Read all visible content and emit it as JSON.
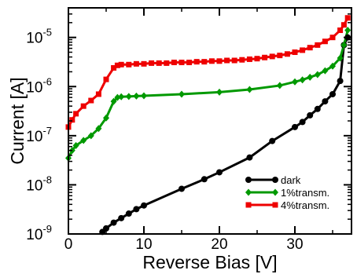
{
  "chart_data": {
    "type": "line",
    "title": "",
    "xlabel": "Reverse Bias [V]",
    "ylabel": "Current [A]",
    "xlim": [
      0,
      37.5
    ],
    "ylim": [
      1e-09,
      4e-05
    ],
    "y_scale": "log",
    "grid": false,
    "legend_position": "bottom-right",
    "x_ticks": [
      {
        "value": 0,
        "label": "0"
      },
      {
        "value": 10,
        "label": "10"
      },
      {
        "value": 20,
        "label": "20"
      },
      {
        "value": 30,
        "label": "30"
      }
    ],
    "y_ticks": [
      {
        "value": 1e-09,
        "base": "10",
        "exp": "-9"
      },
      {
        "value": 1e-08,
        "base": "10",
        "exp": "-8"
      },
      {
        "value": 1e-07,
        "base": "10",
        "exp": "-7"
      },
      {
        "value": 1e-06,
        "base": "10",
        "exp": "-6"
      },
      {
        "value": 1e-05,
        "base": "10",
        "exp": "-5"
      }
    ],
    "series": [
      {
        "name": "dark",
        "color": "#000000",
        "marker": "circle",
        "points": [
          [
            4.5,
            1.1e-09
          ],
          [
            5,
            1.3e-09
          ],
          [
            6,
            1.7e-09
          ],
          [
            7,
            2.1e-09
          ],
          [
            8,
            2.6e-09
          ],
          [
            9,
            3.2e-09
          ],
          [
            10,
            3.8e-09
          ],
          [
            15,
            8.3e-09
          ],
          [
            18,
            1.3e-08
          ],
          [
            20,
            1.8e-08
          ],
          [
            24,
            3.6e-08
          ],
          [
            27,
            7.8e-08
          ],
          [
            30,
            1.5e-07
          ],
          [
            31,
            1.9e-07
          ],
          [
            32,
            2.6e-07
          ],
          [
            33,
            3.5e-07
          ],
          [
            34,
            5e-07
          ],
          [
            35,
            7e-07
          ],
          [
            36,
            1.3e-06
          ],
          [
            36.5,
            7e-06
          ],
          [
            37,
            1e-05
          ]
        ]
      },
      {
        "name": "1%transm.",
        "color": "#009900",
        "marker": "diamond",
        "points": [
          [
            0,
            3.5e-08
          ],
          [
            0.5,
            5e-08
          ],
          [
            1,
            6.3e-08
          ],
          [
            2,
            8e-08
          ],
          [
            3,
            1e-07
          ],
          [
            4,
            1.4e-07
          ],
          [
            5,
            2.3e-07
          ],
          [
            6,
            5e-07
          ],
          [
            6.5,
            6e-07
          ],
          [
            7,
            6.2e-07
          ],
          [
            8,
            6.3e-07
          ],
          [
            9,
            6.4e-07
          ],
          [
            10,
            6.5e-07
          ],
          [
            15,
            7e-07
          ],
          [
            20,
            7.7e-07
          ],
          [
            24,
            8.7e-07
          ],
          [
            28,
            1.05e-06
          ],
          [
            30,
            1.25e-06
          ],
          [
            31,
            1.37e-06
          ],
          [
            32,
            1.55e-06
          ],
          [
            33,
            1.75e-06
          ],
          [
            34,
            2.1e-06
          ],
          [
            35,
            2.6e-06
          ],
          [
            36,
            3.8e-06
          ],
          [
            36.5,
            7e-06
          ],
          [
            37,
            1.4e-05
          ]
        ]
      },
      {
        "name": "4%transm.",
        "color": "#ee0000",
        "marker": "square",
        "points": [
          [
            0,
            1.5e-07
          ],
          [
            0.5,
            2.1e-07
          ],
          [
            1,
            2.8e-07
          ],
          [
            2,
            4e-07
          ],
          [
            3,
            5.2e-07
          ],
          [
            4,
            7e-07
          ],
          [
            5,
            1.4e-06
          ],
          [
            6,
            2.4e-06
          ],
          [
            6.5,
            2.7e-06
          ],
          [
            7,
            2.8e-06
          ],
          [
            8,
            2.8e-06
          ],
          [
            9,
            2.9e-06
          ],
          [
            10,
            2.9e-06
          ],
          [
            11,
            3e-06
          ],
          [
            12,
            3e-06
          ],
          [
            13,
            3e-06
          ],
          [
            14,
            3.1e-06
          ],
          [
            15,
            3.1e-06
          ],
          [
            16,
            3.1e-06
          ],
          [
            17,
            3.2e-06
          ],
          [
            18,
            3.2e-06
          ],
          [
            19,
            3.3e-06
          ],
          [
            20,
            3.3e-06
          ],
          [
            21,
            3.4e-06
          ],
          [
            22,
            3.4e-06
          ],
          [
            23,
            3.5e-06
          ],
          [
            24,
            3.6e-06
          ],
          [
            25,
            3.7e-06
          ],
          [
            26,
            3.9e-06
          ],
          [
            27,
            4.1e-06
          ],
          [
            28,
            4.3e-06
          ],
          [
            29,
            4.6e-06
          ],
          [
            30,
            5e-06
          ],
          [
            31,
            5.5e-06
          ],
          [
            32,
            6.2e-06
          ],
          [
            33,
            7e-06
          ],
          [
            34,
            8.3e-06
          ],
          [
            35,
            1e-05
          ],
          [
            36,
            1.4e-05
          ],
          [
            36.5,
            1.8e-05
          ],
          [
            37,
            2.5e-05
          ]
        ]
      }
    ]
  }
}
